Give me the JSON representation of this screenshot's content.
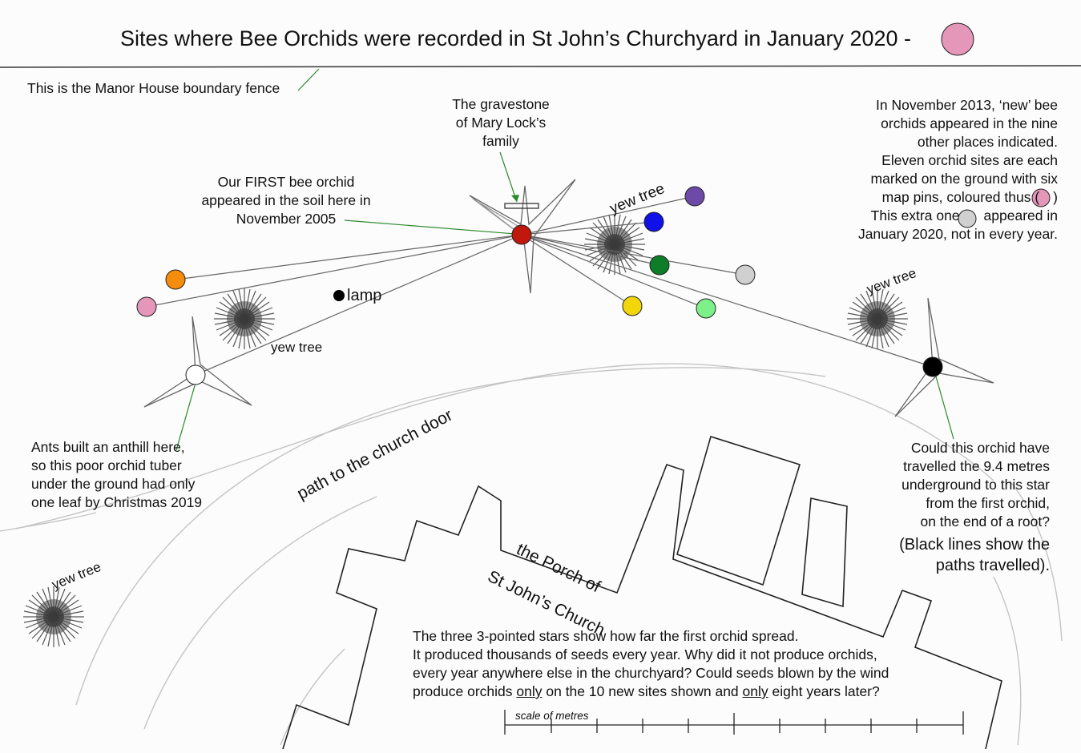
{
  "title": "Sites where Bee Orchids were recorded in St John’s Churchyard in January 2020 -",
  "legend_marker_color": "#e497b8",
  "labels": {
    "fence": "This is the Manor House boundary fence",
    "gravestone": "The gravestone\nof Mary Lock’s\nfamily",
    "first_orchid": "Our FIRST bee orchid\nappeared in the soil here in\nNovember 2005",
    "lamp": "lamp",
    "path": "path to the church  door",
    "porch_line1": "the Porch of",
    "porch_line2": "St John’s Church",
    "anthill": "Ants built an anthill here,\nso this poor orchid tuber\nunder the ground had only\none leaf by Christmas 2019",
    "travel": "Could this orchid have\ntravelled the 9.4 metres\nunderground to this star\nfrom the first orchid,\non the end of a root?",
    "black_lines": "(Black lines show the\npaths travelled).",
    "scale": "scale of metres"
  },
  "info_block": {
    "line1": "In November 2013, ‘new’ bee",
    "line2": "orchids appeared in the nine",
    "line3": "other places indicated.",
    "line4": "Eleven orchid sites are each",
    "line5": "marked on the ground with six",
    "line6_before": "map pins, coloured thus (",
    "line6_after": ")",
    "line7_before": "This extra one",
    "line7_after": "appeared in",
    "line8": "January 2020, not in every year."
  },
  "bottom_text": {
    "line1": "The three 3-pointed stars show how far the first orchid spread.",
    "line2": "It produced thousands of seeds every year.  Why did it not produce orchids,",
    "line3": "every year anywhere else in the churchyard?  Could seeds blown by the wind",
    "line4_a": "produce orchids ",
    "line4_b": "only",
    "line4_c": " on the 10 new sites shown and ",
    "line4_d": "only",
    "line4_e": " eight years later?"
  },
  "yew_labels": [
    "yew tree",
    "yew tree",
    "yew tree",
    "yew tree"
  ],
  "orchid_sites": [
    {
      "id": "first",
      "color": "#c0180c"
    },
    {
      "id": "purple",
      "color": "#6e4aa8"
    },
    {
      "id": "blue",
      "color": "#1010e8"
    },
    {
      "id": "dark-green",
      "color": "#0e7d2a"
    },
    {
      "id": "grey-right",
      "color": "#d0d0d0"
    },
    {
      "id": "light-green",
      "color": "#7df08a"
    },
    {
      "id": "yellow",
      "color": "#f3d60a"
    },
    {
      "id": "orange",
      "color": "#f58c0c"
    },
    {
      "id": "pink",
      "color": "#e497b8"
    },
    {
      "id": "white-anthill",
      "color": "#ffffff"
    },
    {
      "id": "black-far",
      "color": "#000000"
    }
  ],
  "legend_pin_color": "#e497b8",
  "extra_pin_color": "#d0d0d0"
}
